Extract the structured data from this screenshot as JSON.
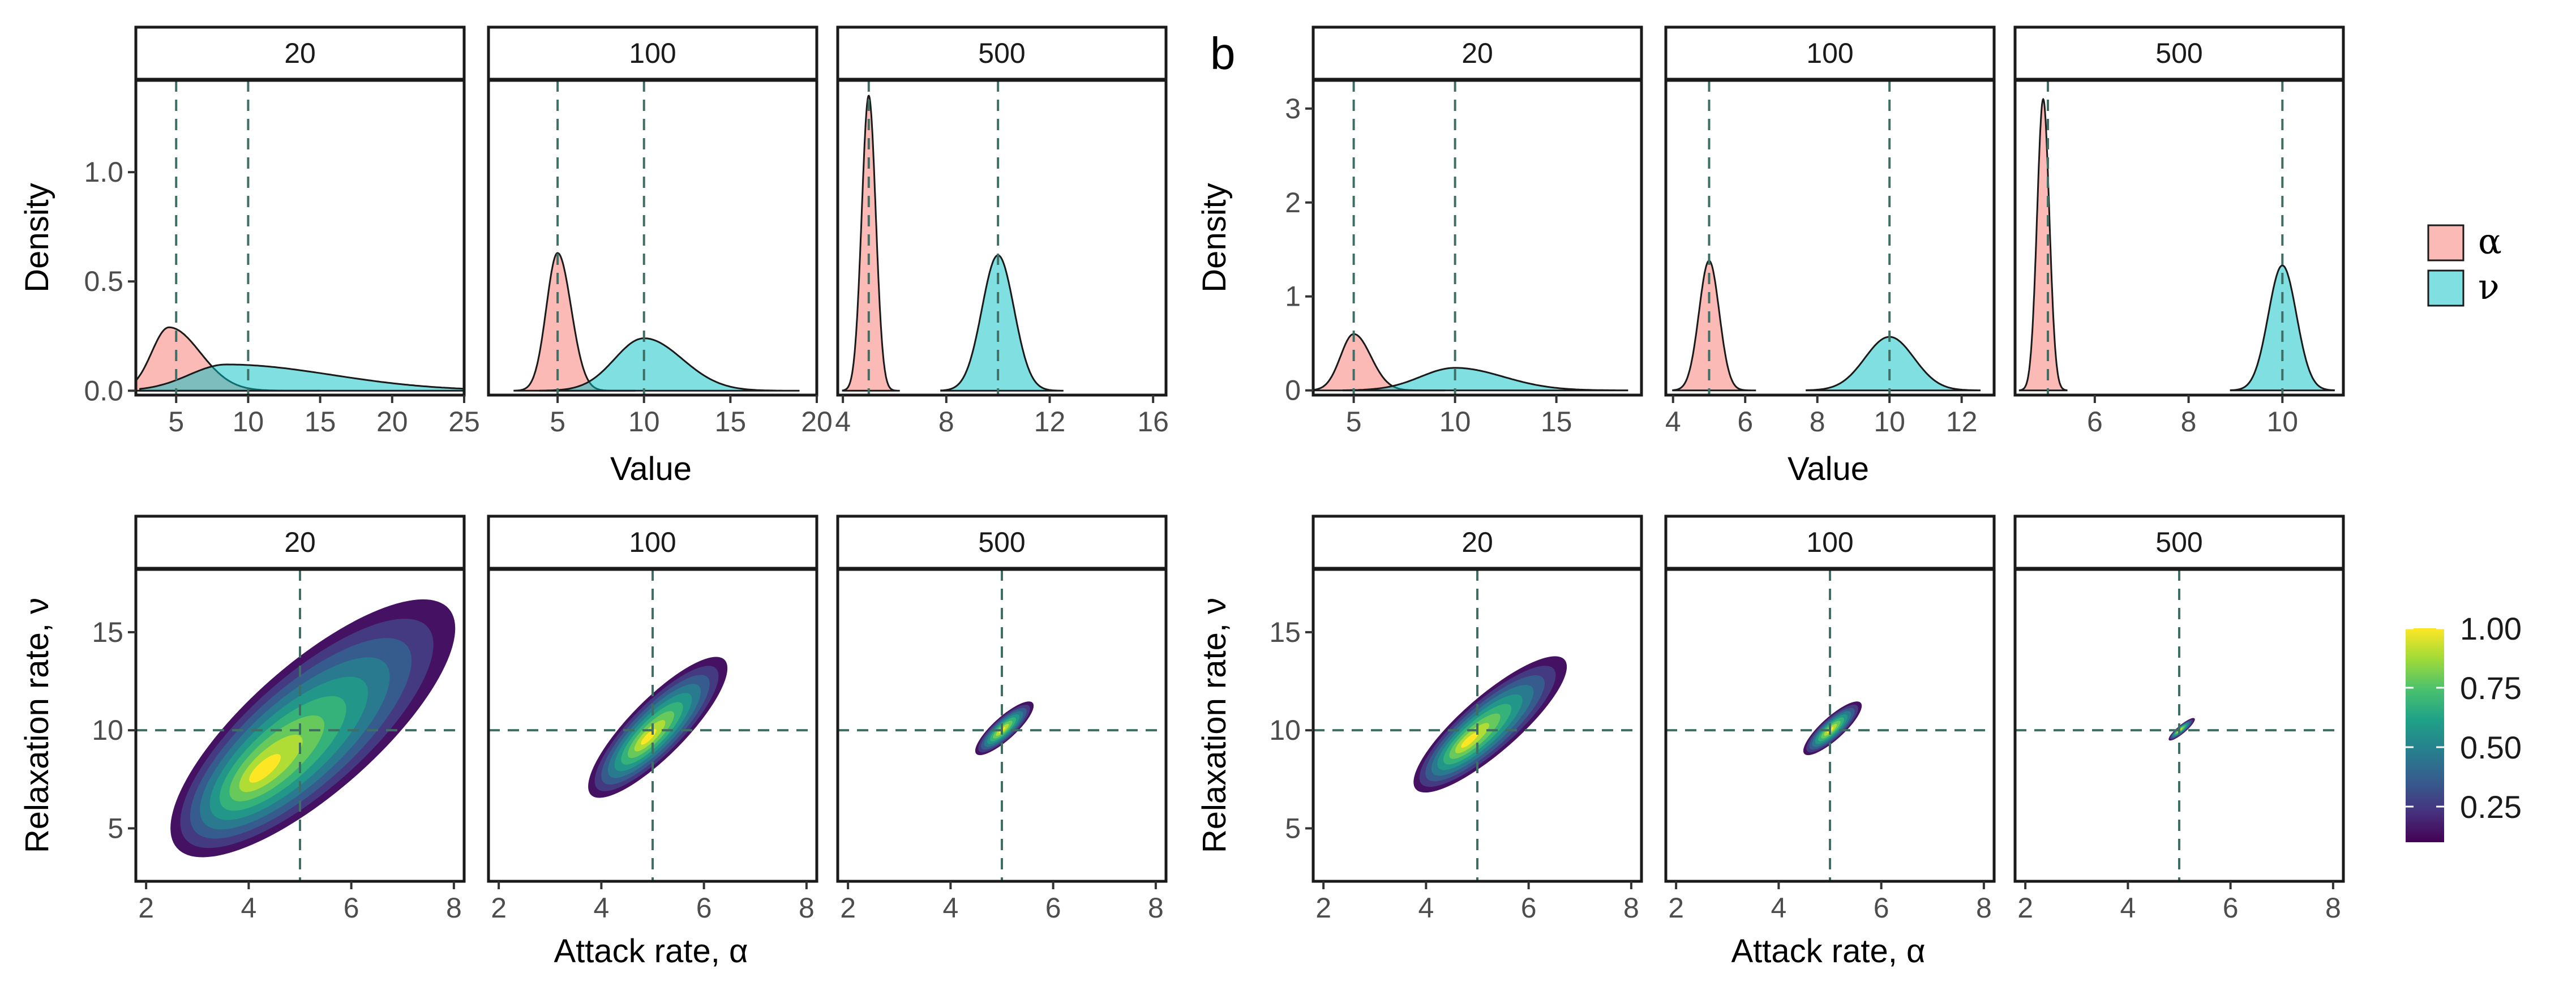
{
  "chart_data": {
    "type": "faceted density and 2D density plots",
    "panel_letter": "b",
    "colors": {
      "alpha_fill": "#f8766d",
      "nu_fill": "#00bfc4",
      "ref_line": "#3f6f64",
      "strip_bg": "#ffffff"
    },
    "legend": {
      "entries": [
        {
          "key": "alpha",
          "label": "α",
          "color": "#f8766d"
        },
        {
          "key": "nu",
          "label": "ν",
          "color": "#00bfc4"
        }
      ]
    },
    "colorbar": {
      "ticks": [
        "1.00",
        "0.75",
        "0.50",
        "0.25"
      ],
      "tick_values": [
        1.0,
        0.75,
        0.5,
        0.25
      ],
      "range": [
        0.1,
        1.0
      ],
      "stops": [
        "#fde725",
        "#a0da39",
        "#4ac16d",
        "#1fa187",
        "#277f8e",
        "#365c8d",
        "#46327e",
        "#440154"
      ]
    },
    "true_values": {
      "alpha": 5,
      "nu": 10
    },
    "rows": [
      {
        "kind": "density",
        "y_title": "Density",
        "x_title": "Value",
        "groups": [
          {
            "id": "left",
            "y_ticks": [
              0.0,
              0.5,
              1.0
            ],
            "y_tick_labels": [
              "0.0",
              "0.5",
              "1.0"
            ],
            "ylim": [
              -0.02,
              1.42
            ],
            "facets": [
              {
                "strip": "20",
                "xlim": [
                  2.2,
                  25.0
                ],
                "x_ticks": [
                  5,
                  10,
                  15,
                  20,
                  25
                ],
                "x_tick_labels": [
                  "5",
                  "10",
                  "15",
                  "20",
                  "25"
                ],
                "alpha": {
                  "mean": 4.5,
                  "sd": 1.2,
                  "skew": 1.8,
                  "peak": 0.29,
                  "range": [
                    2.0,
                    15.0
                  ]
                },
                "nu": {
                  "mean": 8.5,
                  "sd": 2.6,
                  "skew": 2.8,
                  "peak": 0.12,
                  "range": [
                    2.5,
                    25.0
                  ]
                }
              },
              {
                "strip": "100",
                "xlim": [
                  1.0,
                  20.0
                ],
                "x_ticks": [
                  5,
                  10,
                  15,
                  20
                ],
                "x_tick_labels": [
                  "5",
                  "10",
                  "15",
                  "20"
                ],
                "alpha": {
                  "mean": 5.0,
                  "sd": 0.65,
                  "skew": 1.2,
                  "peak": 0.63,
                  "range": [
                    2.5,
                    9.5
                  ]
                },
                "nu": {
                  "mean": 10.0,
                  "sd": 1.7,
                  "skew": 1.3,
                  "peak": 0.24,
                  "range": [
                    4.0,
                    19.0
                  ]
                }
              },
              {
                "strip": "500",
                "xlim": [
                  3.8,
                  16.5
                ],
                "x_ticks": [
                  4,
                  8,
                  12,
                  16
                ],
                "x_tick_labels": [
                  "4",
                  "8",
                  "12",
                  "16"
                ],
                "alpha": {
                  "mean": 5.0,
                  "sd": 0.27,
                  "skew": 1.0,
                  "peak": 1.35,
                  "range": [
                    4.0,
                    6.2
                  ]
                },
                "nu": {
                  "mean": 10.0,
                  "sd": 0.62,
                  "skew": 1.0,
                  "peak": 0.62,
                  "range": [
                    7.8,
                    12.5
                  ]
                }
              }
            ]
          },
          {
            "id": "right",
            "y_ticks": [
              0,
              1,
              2,
              3
            ],
            "y_tick_labels": [
              "0",
              "1",
              "2",
              "3"
            ],
            "ylim": [
              -0.05,
              3.3
            ],
            "facets": [
              {
                "strip": "20",
                "xlim": [
                  3.0,
                  19.2
                ],
                "x_ticks": [
                  5,
                  10,
                  15
                ],
                "x_tick_labels": [
                  "5",
                  "10",
                  "15"
                ],
                "alpha": {
                  "mean": 5.0,
                  "sd": 0.65,
                  "skew": 1.3,
                  "peak": 0.6,
                  "range": [
                    3.0,
                    9.5
                  ]
                },
                "nu": {
                  "mean": 10.0,
                  "sd": 1.7,
                  "skew": 1.4,
                  "peak": 0.24,
                  "range": [
                    4.5,
                    18.5
                  ]
                }
              },
              {
                "strip": "100",
                "xlim": [
                  3.8,
                  12.9
                ],
                "x_ticks": [
                  4,
                  6,
                  8,
                  10,
                  12
                ],
                "x_tick_labels": [
                  "4",
                  "6",
                  "8",
                  "10",
                  "12"
                ],
                "alpha": {
                  "mean": 5.0,
                  "sd": 0.28,
                  "skew": 1.0,
                  "peak": 1.38,
                  "range": [
                    4.0,
                    6.3
                  ]
                },
                "nu": {
                  "mean": 10.0,
                  "sd": 0.68,
                  "skew": 1.0,
                  "peak": 0.57,
                  "range": [
                    7.7,
                    12.5
                  ]
                }
              },
              {
                "strip": "500",
                "xlim": [
                  4.3,
                  11.3
                ],
                "x_ticks": [
                  6,
                  8,
                  10
                ],
                "x_tick_labels": [
                  "6",
                  "8",
                  "10"
                ],
                "alpha": {
                  "mean": 4.9,
                  "sd": 0.13,
                  "skew": 1.0,
                  "peak": 3.1,
                  "range": [
                    4.4,
                    5.4
                  ]
                },
                "nu": {
                  "mean": 10.0,
                  "sd": 0.3,
                  "skew": 1.0,
                  "peak": 1.33,
                  "range": [
                    8.9,
                    11.1
                  ]
                }
              }
            ]
          }
        ]
      },
      {
        "kind": "density2d",
        "y_title": "Relaxation rate, ν",
        "x_title": "Attack rate, α",
        "groups": [
          {
            "id": "left",
            "xlim": [
              1.8,
              8.2
            ],
            "ylim": [
              2.3,
              18.2
            ],
            "x_ticks": [
              2,
              4,
              6,
              8
            ],
            "x_tick_labels": [
              "2",
              "4",
              "6",
              "8"
            ],
            "y_ticks": [
              5,
              10,
              15
            ],
            "y_tick_labels": [
              "5",
              "10",
              "15"
            ],
            "facets": [
              {
                "strip": "20",
                "mode": [
                  4.2,
                  7.8
                ],
                "extent": [
                  [
                    2.6,
                    4.0
                  ],
                  [
                    7.9,
                    16.2
                  ]
                ],
                "width": 1.25
              },
              {
                "strip": "100",
                "mode": [
                  4.9,
                  9.6
                ],
                "extent": [
                  [
                    3.8,
                    6.7
                  ],
                  [
                    6.4,
                    13.6
                  ]
                ],
                "width": 0.55
              },
              {
                "strip": "500",
                "mode": [
                  5.0,
                  10.0
                ],
                "extent": [
                  [
                    4.5,
                    8.8
                  ],
                  [
                    5.6,
                    11.4
                  ]
                ],
                "width": 0.22
              }
            ]
          },
          {
            "id": "right",
            "xlim": [
              1.8,
              8.2
            ],
            "ylim": [
              2.3,
              18.2
            ],
            "x_ticks": [
              2,
              4,
              6,
              8
            ],
            "x_tick_labels": [
              "2",
              "4",
              "6",
              "8"
            ],
            "y_ticks": [
              5,
              10,
              15
            ],
            "y_tick_labels": [
              "5",
              "10",
              "15"
            ],
            "facets": [
              {
                "strip": "20",
                "mode": [
                  4.8,
                  9.4
                ],
                "extent": [
                  [
                    3.8,
                    7.0
                  ],
                  [
                    6.7,
                    13.6
                  ]
                ],
                "width": 0.55
              },
              {
                "strip": "100",
                "mode": [
                  5.0,
                  10.0
                ],
                "extent": [
                  [
                    4.5,
                    8.8
                  ],
                  [
                    5.6,
                    11.4
                  ]
                ],
                "width": 0.22
              },
              {
                "strip": "500",
                "mode": [
                  5.0,
                  10.0
                ],
                "extent": [
                  [
                    4.8,
                    9.5
                  ],
                  [
                    5.3,
                    10.6
                  ]
                ],
                "width": 0.08
              }
            ]
          }
        ]
      }
    ]
  }
}
